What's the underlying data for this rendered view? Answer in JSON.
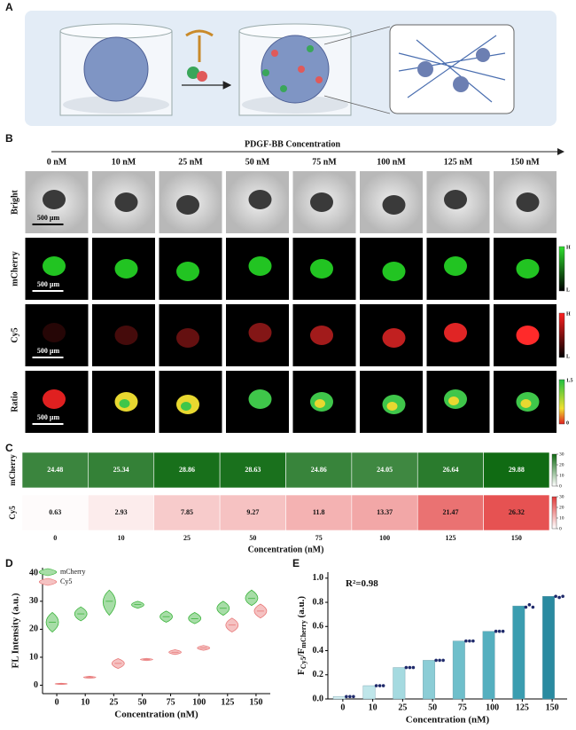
{
  "figure": {
    "panel_a": {
      "label": "A"
    },
    "panel_b": {
      "label": "B",
      "axis_title": "PDGF-BB Concentration",
      "columns": [
        "0 nM",
        "10 nM",
        "25 nM",
        "50 nM",
        "75 nM",
        "100 nM",
        "125 nM",
        "150 nM"
      ],
      "rows": [
        "Bright",
        "mCherry",
        "Cy5",
        "Ratio"
      ],
      "scale_bar": "500 µm",
      "colorbars": [
        [
          "H",
          "L"
        ],
        [
          "H",
          "L"
        ],
        [
          "1.5",
          "0"
        ]
      ]
    }
  },
  "chart_data": [
    {
      "type": "heatmap",
      "panel_label": "C",
      "categories": [
        "0",
        "10",
        "25",
        "50",
        "75",
        "100",
        "125",
        "150"
      ],
      "x_label": "Concentration (nM)",
      "clim": [
        0,
        30
      ],
      "cticks": [
        0,
        10,
        20,
        30
      ],
      "series": [
        {
          "name": "mCherry",
          "color": "#0f6a12",
          "values": [
            24.48,
            25.34,
            28.86,
            28.63,
            24.86,
            24.05,
            26.64,
            29.88
          ]
        },
        {
          "name": "Cy5",
          "color": "#e23a3a",
          "values": [
            0.63,
            2.93,
            7.85,
            9.27,
            11.8,
            13.37,
            21.47,
            26.32
          ]
        }
      ]
    },
    {
      "type": "violin",
      "panel_label": "D",
      "categories": [
        "0",
        "10",
        "25",
        "50",
        "75",
        "100",
        "125",
        "150"
      ],
      "x_label": "Concentration (nM)",
      "y_label": "FL Intensity (a.u.)",
      "ylim": [
        -3,
        42
      ],
      "yticks": [
        0,
        10,
        20,
        30,
        40
      ],
      "legend": "upper left",
      "series": [
        {
          "name": "mCherry",
          "color": "#3cb43c",
          "values": [
            22.5,
            25.5,
            30,
            28.8,
            24.5,
            23.8,
            27.5,
            31
          ],
          "low": [
            19,
            23,
            25,
            27.5,
            22.5,
            22,
            25,
            28.5
          ],
          "high": [
            26,
            28,
            34,
            30,
            26.5,
            26,
            30,
            34
          ]
        },
        {
          "name": "Cy5",
          "color": "#e87878",
          "values": [
            0.5,
            2.8,
            7.8,
            9.2,
            11.8,
            13.3,
            21.5,
            26.5
          ],
          "low": [
            0.3,
            2.5,
            6,
            8.8,
            11,
            12.5,
            19,
            24
          ],
          "high": [
            0.7,
            3.2,
            9.5,
            9.6,
            12.7,
            14.2,
            24,
            29
          ]
        }
      ]
    },
    {
      "type": "bar",
      "panel_label": "E",
      "categories": [
        "0",
        "10",
        "25",
        "50",
        "75",
        "100",
        "125",
        "150"
      ],
      "x_label": "Concentration (nM)",
      "y_label": [
        "F",
        "Cy5",
        "/F",
        "mCherry",
        " (a.u.)"
      ],
      "annotation": "R²=0.98",
      "ylim": [
        0,
        1.05
      ],
      "yticks": [
        {
          "value": 0,
          "label": "0.0"
        },
        0.2,
        0.4,
        0.6,
        0.8,
        {
          "value": 1,
          "label": "1.0"
        }
      ],
      "values": [
        0.02,
        0.11,
        0.26,
        0.32,
        0.48,
        0.56,
        0.77,
        0.85
      ],
      "colors": [
        "#d8f0f2",
        "#bfe6ea",
        "#a5dae0",
        "#8ccdd6",
        "#6fbfcb",
        "#55afbf",
        "#3b9db0",
        "#2a8aa0"
      ],
      "points_color": "#1f2a6b",
      "points": [
        [
          0.02,
          0.02,
          0.02
        ],
        [
          0.11,
          0.11,
          0.11
        ],
        [
          0.26,
          0.26,
          0.26
        ],
        [
          0.32,
          0.32,
          0.32
        ],
        [
          0.48,
          0.48,
          0.48
        ],
        [
          0.56,
          0.56,
          0.56
        ],
        [
          0.76,
          0.78,
          0.76
        ],
        [
          0.85,
          0.84,
          0.85
        ]
      ]
    }
  ]
}
